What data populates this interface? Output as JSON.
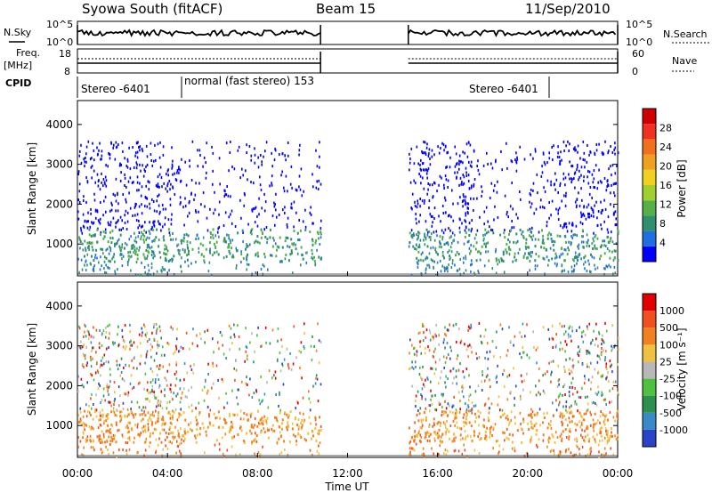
{
  "header": {
    "station": "Syowa South (fitACF)",
    "beam": "Beam 15",
    "date": "11/Sep/2010"
  },
  "top_panels": {
    "nsky_label": "N.Sky",
    "nsky_ticks": [
      "10^5",
      "10^0"
    ],
    "nsearch_ticks": [
      "10^5",
      "10^0"
    ],
    "nsearch_label": "N.Search",
    "freq_label_1": "Freq.",
    "freq_label_2": "[MHz]",
    "freq_ticks": [
      "18",
      "8"
    ],
    "nave_ticks": [
      "60",
      "0"
    ],
    "nave_label": "Nave",
    "cpid_label": "CPID",
    "cpid_segments": [
      "Stereo -6401",
      "normal (fast stereo) 153",
      "Stereo -6401"
    ]
  },
  "x_axis": {
    "ticks": [
      "00:00",
      "04:00",
      "08:00",
      "12:00",
      "16:00",
      "20:00",
      "00:00"
    ],
    "label": "Time UT"
  },
  "colorbars": {
    "power": {
      "label": "Power [dB]",
      "ticks": [
        "28",
        "24",
        "20",
        "16",
        "12",
        "8",
        "4"
      ],
      "colors": [
        "#0000ff",
        "#1f6fe0",
        "#2f8f6f",
        "#55b04a",
        "#a0d030",
        "#f0d020",
        "#f0a020",
        "#f07020",
        "#f03020",
        "#d00000"
      ]
    },
    "velocity": {
      "label": "Velocity [m s⁻¹]",
      "ticks": [
        "1000",
        "500",
        "100",
        "25",
        "-25",
        "-100",
        "-500",
        "-1000"
      ],
      "colors": [
        "#2a44c8",
        "#3a8ac8",
        "#2f8f4f",
        "#4fc040",
        "#b8b8b8",
        "#f0c040",
        "#f08020",
        "#f05020",
        "#e00000"
      ]
    }
  },
  "chart_data": [
    {
      "type": "heatmap",
      "title": "Power",
      "ylabel": "Slant Range [km]",
      "xlabel": "Time UT",
      "xlim": [
        0,
        24
      ],
      "ylim": [
        200,
        4600
      ],
      "yticks": [
        1000,
        2000,
        3000,
        4000
      ],
      "data_gaps_hours": [
        [
          10.8,
          14.7
        ]
      ],
      "cpid_changes_hours": [
        4.6,
        17.8,
        21.0
      ],
      "colorbar": "Power [dB]"
    },
    {
      "type": "heatmap",
      "title": "Velocity",
      "ylabel": "Slant Range [km]",
      "xlabel": "Time UT",
      "xlim": [
        0,
        24
      ],
      "ylim": [
        200,
        4600
      ],
      "yticks": [
        1000,
        2000,
        3000,
        4000
      ],
      "data_gaps_hours": [
        [
          10.8,
          14.7
        ]
      ],
      "colorbar": "Velocity [m s⁻¹]"
    }
  ]
}
